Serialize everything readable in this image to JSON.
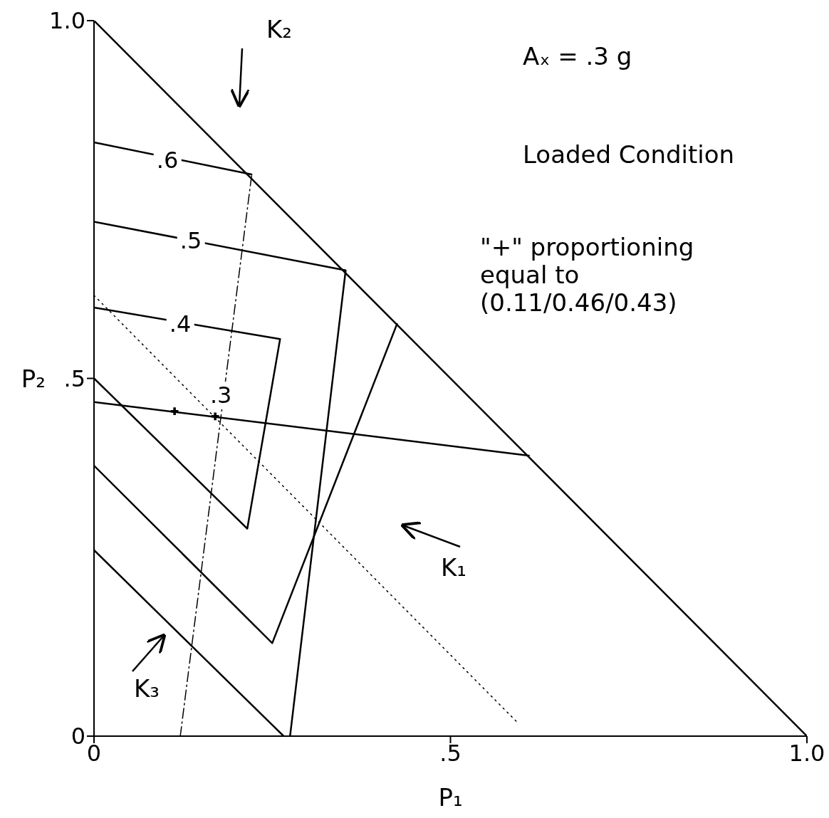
{
  "chart_data": {
    "type": "line",
    "xlabel": "P₁",
    "ylabel": "P₂",
    "xlim": [
      0,
      1
    ],
    "ylim": [
      0,
      1
    ],
    "xticks": [
      0,
      {
        "value": 0.5,
        "label": ".5"
      },
      {
        "value": 1,
        "label": "1.0"
      }
    ],
    "yticks": [
      0,
      {
        "value": 0.5,
        "label": ".5"
      },
      {
        "value": 1,
        "label": "1.0"
      }
    ],
    "series": [
      {
        "color": "#000000",
        "x": [
          0,
          1
        ],
        "values": [
          1,
          0
        ]
      },
      {
        "color": "#000000",
        "x": [
          0,
          0.221
        ],
        "values": [
          0.83,
          0.785
        ]
      },
      {
        "color": "#000000",
        "x": [
          0,
          0.353,
          0.275
        ],
        "values": [
          0.719,
          0.651,
          0
        ]
      },
      {
        "color": "#000000",
        "x": [
          0,
          0.261,
          0.215,
          0
        ],
        "values": [
          0.599,
          0.555,
          0.29,
          0.5
        ]
      },
      {
        "color": "#000000",
        "x": [
          0,
          0.25,
          0.425
        ],
        "values": [
          0.378,
          0.13,
          0.576
        ]
      },
      {
        "color": "#000000",
        "x": [
          0,
          0.266
        ],
        "values": [
          0.26,
          0
        ]
      },
      {
        "color": "#000000",
        "x": [
          0.221,
          0.121
        ],
        "values": [
          0.783,
          0
        ],
        "line_style": "dashed"
      },
      {
        "color": "#000000",
        "x": [
          0,
          0.596
        ],
        "values": [
          0.616,
          0.017
        ],
        "line_style": "dotted"
      },
      {
        "color": "#000000",
        "x": [
          0,
          0.61
        ],
        "values": [
          0.467,
          0.392
        ]
      },
      {
        "type": "scatter",
        "color": "#000000",
        "marker": "cross",
        "x": [
          0.113,
          0.17
        ],
        "values": [
          0.454,
          0.447
        ]
      }
    ],
    "annotations": [
      {
        "text": ".6",
        "x": 0.103,
        "y": 0.805
      },
      {
        "text": ".5",
        "x": 0.136,
        "y": 0.693
      },
      {
        "text": ".4",
        "x": 0.121,
        "y": 0.576
      },
      {
        "text": ".3",
        "x": 0.178,
        "y": 0.477
      },
      "K₂",
      "K₁",
      "K₃",
      "Aₓ = .3 g",
      "Loaded Condition",
      "\"+\" proportioning equal to (0.11/0.46/0.43)"
    ]
  }
}
